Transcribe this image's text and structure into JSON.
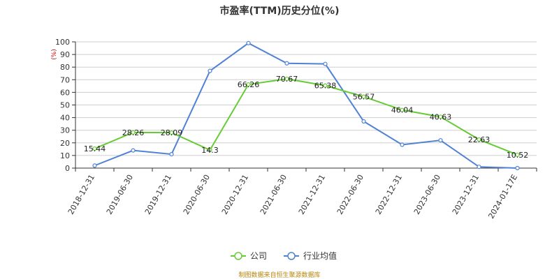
{
  "chart_data": {
    "type": "line",
    "title": "市盈率(TTM)历史分位(%)",
    "unit": "(%)",
    "categories": [
      "2018-12-31",
      "2019-06-30",
      "2019-12-31",
      "2020-06-30",
      "2020-12-31",
      "2021-06-30",
      "2021-12-31",
      "2022-06-30",
      "2022-12-31",
      "2023-06-30",
      "2023-12-31",
      "2024-01-17E"
    ],
    "ylim": [
      0,
      100
    ],
    "yticks": [
      0,
      10,
      20,
      30,
      40,
      50,
      60,
      70,
      80,
      90,
      100
    ],
    "grid": true,
    "legend_position": "bottom",
    "series": [
      {
        "name": "公司",
        "color": "#66cc33",
        "values": [
          15.44,
          28.26,
          28.09,
          14.3,
          66.26,
          70.67,
          65.38,
          56.57,
          46.04,
          40.63,
          22.63,
          10.52
        ],
        "labels": [
          "15.44",
          "28.26",
          "28.09",
          "14.3",
          "66.26",
          "70.67",
          "65.38",
          "56.57",
          "46.04",
          "40.63",
          "22.63",
          "10.52"
        ]
      },
      {
        "name": "行业均值",
        "color": "#4f81d6",
        "values": [
          2,
          14,
          11,
          77,
          99,
          83,
          82.5,
          37,
          18.5,
          22,
          1,
          0
        ]
      }
    ],
    "source": "制图数据来自恒生聚源数据库"
  }
}
